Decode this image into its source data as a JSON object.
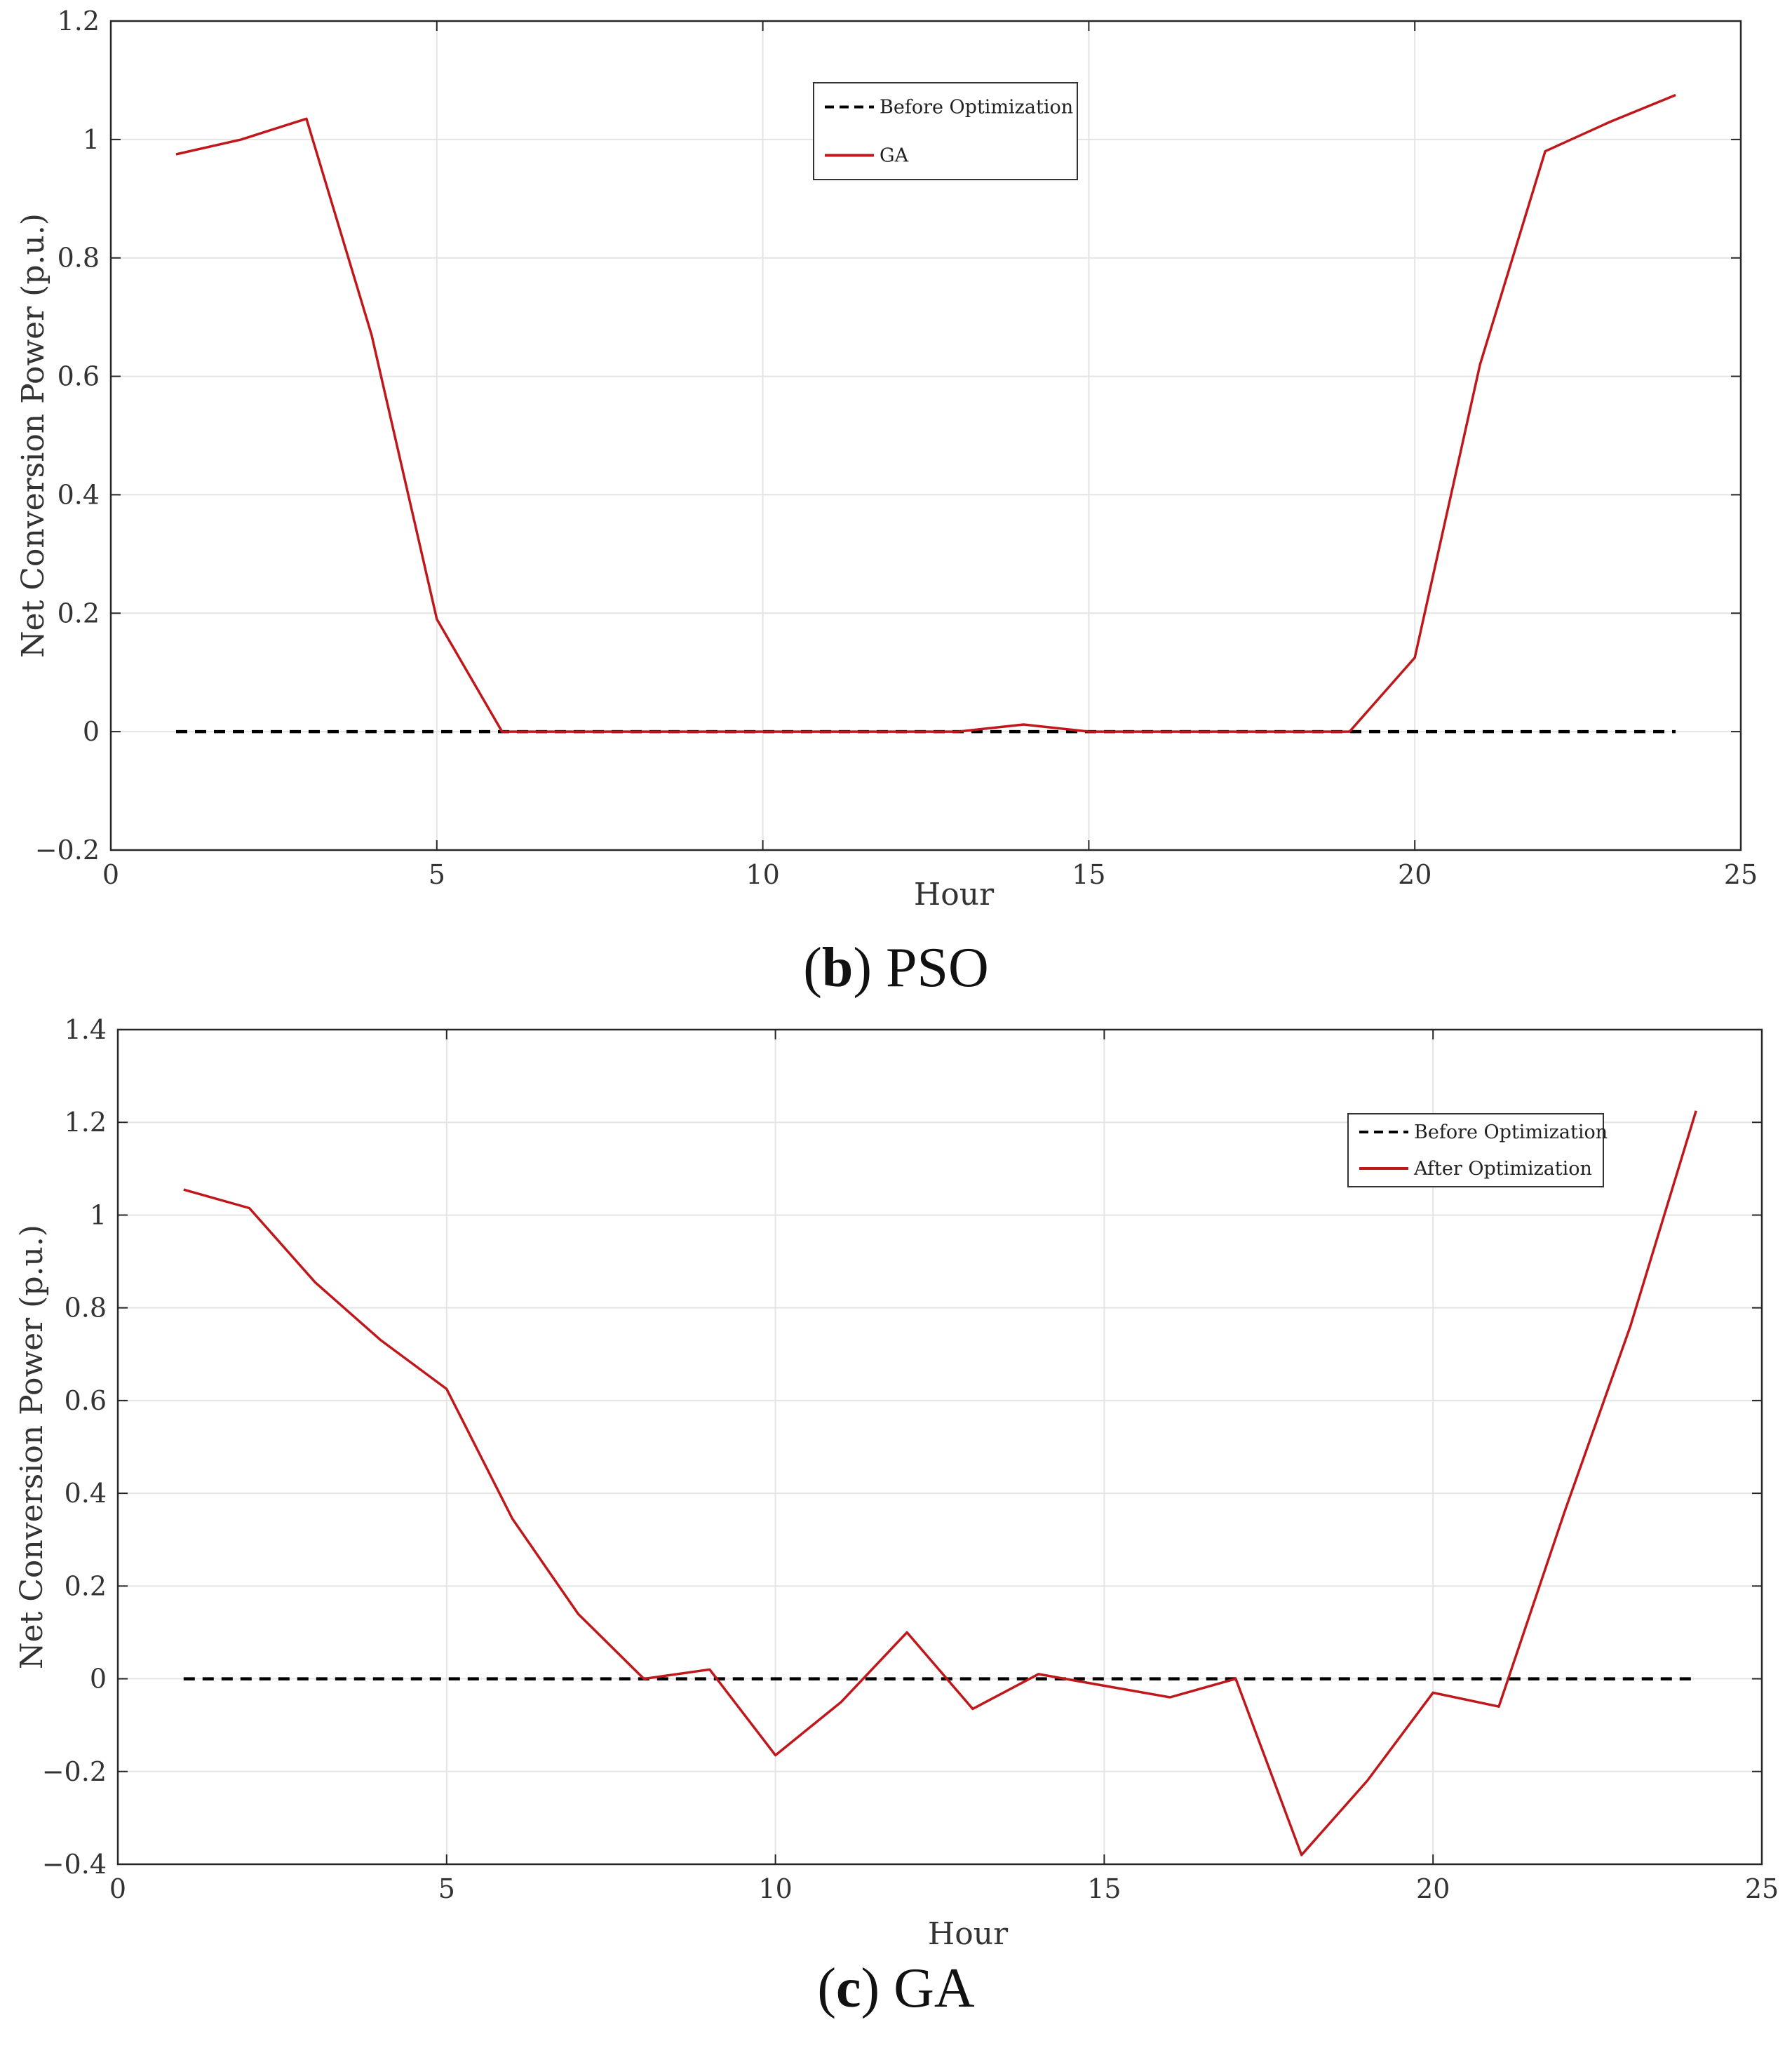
{
  "chart_data": [
    {
      "type": "line",
      "caption_letter": "b",
      "caption_text": "PSO",
      "xlabel": "Hour",
      "ylabel": "Net Conversion Power (p.u.)",
      "xlim": [
        0,
        25
      ],
      "ylim": [
        -0.2,
        1.2
      ],
      "xticks": [
        0,
        5,
        10,
        15,
        20,
        25
      ],
      "yticks": [
        -0.2,
        0,
        0.2,
        0.4,
        0.6,
        0.8,
        1,
        1.2
      ],
      "xtick_labels": [
        "0",
        "5",
        "10",
        "15",
        "20",
        "25"
      ],
      "ytick_labels": [
        "−0.2",
        "0",
        "0.2",
        "0.4",
        "0.6",
        "0.8",
        "1",
        "1.2"
      ],
      "grid": true,
      "legend": {
        "position": "top-center",
        "entries": [
          "Before Optimization",
          "GA"
        ]
      },
      "x": [
        1,
        2,
        3,
        4,
        5,
        6,
        7,
        8,
        9,
        10,
        11,
        12,
        13,
        14,
        15,
        16,
        17,
        18,
        19,
        20,
        21,
        22,
        23,
        24
      ],
      "series": [
        {
          "name": "Before Optimization",
          "style": "dashed",
          "color": "#000000",
          "values": [
            0,
            0,
            0,
            0,
            0,
            0,
            0,
            0,
            0,
            0,
            0,
            0,
            0,
            0,
            0,
            0,
            0,
            0,
            0,
            0,
            0,
            0,
            0,
            0
          ]
        },
        {
          "name": "GA",
          "style": "solid",
          "color": "#c0171b",
          "values": [
            0.975,
            1.0,
            1.035,
            0.67,
            0.19,
            0.0,
            0.0,
            0.0,
            0.0,
            0.0,
            0.0,
            0.0,
            0.0,
            0.012,
            0.0,
            0.0,
            0.0,
            0.0,
            0.0,
            0.125,
            0.62,
            0.98,
            1.03,
            1.075
          ]
        }
      ]
    },
    {
      "type": "line",
      "caption_letter": "c",
      "caption_text": "GA",
      "xlabel": "Hour",
      "ylabel": "Net Conversion Power (p.u.)",
      "xlim": [
        0,
        25
      ],
      "ylim": [
        -0.4,
        1.4
      ],
      "xticks": [
        0,
        5,
        10,
        15,
        20,
        25
      ],
      "yticks": [
        -0.4,
        -0.2,
        0,
        0.2,
        0.4,
        0.6,
        0.8,
        1,
        1.2,
        1.4
      ],
      "xtick_labels": [
        "0",
        "5",
        "10",
        "15",
        "20",
        "25"
      ],
      "ytick_labels": [
        "−0.4",
        "−0.2",
        "0",
        "0.2",
        "0.4",
        "0.6",
        "0.8",
        "1",
        "1.2",
        "1.4"
      ],
      "grid": true,
      "legend": {
        "position": "top-right",
        "entries": [
          "Before Optimization",
          "After Optimization"
        ]
      },
      "x": [
        1,
        2,
        3,
        4,
        5,
        6,
        7,
        8,
        9,
        10,
        11,
        12,
        13,
        14,
        15,
        16,
        17,
        18,
        19,
        20,
        21,
        22,
        23,
        24
      ],
      "series": [
        {
          "name": "Before Optimization",
          "style": "dashed",
          "color": "#000000",
          "values": [
            0,
            0,
            0,
            0,
            0,
            0,
            0,
            0,
            0,
            0,
            0,
            0,
            0,
            0,
            0,
            0,
            0,
            0,
            0,
            0,
            0,
            0,
            0,
            0
          ]
        },
        {
          "name": "After Optimization",
          "style": "solid",
          "color": "#c0171b",
          "values": [
            1.055,
            1.015,
            0.855,
            0.73,
            0.625,
            0.345,
            0.14,
            0.0,
            0.02,
            -0.165,
            -0.05,
            0.1,
            -0.065,
            0.01,
            -0.015,
            -0.04,
            0.0,
            -0.38,
            -0.22,
            -0.03,
            -0.06,
            0.36,
            0.76,
            1.225
          ]
        }
      ]
    }
  ]
}
